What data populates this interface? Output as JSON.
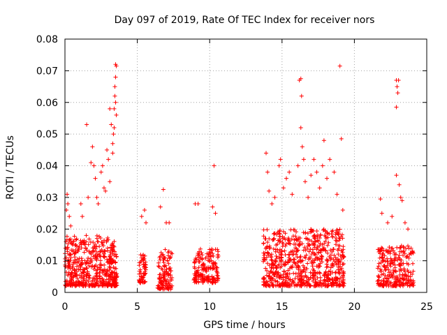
{
  "chart_data": {
    "type": "scatter",
    "title": "Day 097 of 2019, Rate Of TEC Index for receiver nors",
    "xlabel": "GPS time / hours",
    "ylabel": "ROTI / TECUs",
    "xlim": [
      0,
      25
    ],
    "ylim": [
      0,
      0.08
    ],
    "x_ticks": [
      0,
      5,
      10,
      15,
      20,
      25
    ],
    "x_tick_labels": [
      "0",
      "5",
      "10",
      "15",
      "20",
      "25"
    ],
    "y_ticks": [
      0,
      0.01,
      0.02,
      0.03,
      0.04,
      0.05,
      0.06,
      0.07,
      0.08
    ],
    "y_tick_labels": [
      "0",
      "0.01",
      "0.02",
      "0.03",
      "0.04",
      "0.05",
      "0.06",
      "0.07",
      "0.08"
    ],
    "grid": true,
    "marker": "+",
    "series_color": "#ff0000",
    "clusters": [
      {
        "x_range": [
          0.0,
          3.6
        ],
        "y_range": [
          0.002,
          0.018
        ],
        "count": 520
      },
      {
        "x_range": [
          5.1,
          5.6
        ],
        "y_range": [
          0.003,
          0.012
        ],
        "count": 60
      },
      {
        "x_range": [
          6.4,
          7.4
        ],
        "y_range": [
          0.001,
          0.014
        ],
        "count": 120
      },
      {
        "x_range": [
          8.9,
          10.6
        ],
        "y_range": [
          0.003,
          0.014
        ],
        "count": 170
      },
      {
        "x_range": [
          13.7,
          19.3
        ],
        "y_range": [
          0.002,
          0.02
        ],
        "count": 720
      },
      {
        "x_range": [
          21.6,
          24.1
        ],
        "y_range": [
          0.002,
          0.015
        ],
        "count": 260
      }
    ],
    "points": [
      {
        "x": 0.1,
        "y": 0.026
      },
      {
        "x": 0.15,
        "y": 0.031
      },
      {
        "x": 0.2,
        "y": 0.028
      },
      {
        "x": 0.3,
        "y": 0.024
      },
      {
        "x": 0.4,
        "y": 0.021
      },
      {
        "x": 1.1,
        "y": 0.028
      },
      {
        "x": 1.2,
        "y": 0.024
      },
      {
        "x": 1.5,
        "y": 0.053
      },
      {
        "x": 1.6,
        "y": 0.03
      },
      {
        "x": 1.8,
        "y": 0.041
      },
      {
        "x": 1.9,
        "y": 0.046
      },
      {
        "x": 2.0,
        "y": 0.04
      },
      {
        "x": 2.1,
        "y": 0.036
      },
      {
        "x": 2.2,
        "y": 0.03
      },
      {
        "x": 2.3,
        "y": 0.028
      },
      {
        "x": 2.5,
        "y": 0.038
      },
      {
        "x": 2.6,
        "y": 0.04
      },
      {
        "x": 2.7,
        "y": 0.033
      },
      {
        "x": 2.8,
        "y": 0.032
      },
      {
        "x": 2.9,
        "y": 0.045
      },
      {
        "x": 3.0,
        "y": 0.042
      },
      {
        "x": 3.1,
        "y": 0.058
      },
      {
        "x": 3.2,
        "y": 0.053
      },
      {
        "x": 3.3,
        "y": 0.047
      },
      {
        "x": 3.35,
        "y": 0.05
      },
      {
        "x": 3.4,
        "y": 0.052
      },
      {
        "x": 3.4,
        "y": 0.058
      },
      {
        "x": 3.45,
        "y": 0.062
      },
      {
        "x": 3.45,
        "y": 0.065
      },
      {
        "x": 3.5,
        "y": 0.068
      },
      {
        "x": 3.5,
        "y": 0.072
      },
      {
        "x": 3.55,
        "y": 0.0715
      },
      {
        "x": 3.5,
        "y": 0.06
      },
      {
        "x": 3.55,
        "y": 0.056
      },
      {
        "x": 3.3,
        "y": 0.044
      },
      {
        "x": 3.1,
        "y": 0.035
      },
      {
        "x": 5.3,
        "y": 0.024
      },
      {
        "x": 5.5,
        "y": 0.026
      },
      {
        "x": 5.6,
        "y": 0.022
      },
      {
        "x": 6.6,
        "y": 0.027
      },
      {
        "x": 6.8,
        "y": 0.0325
      },
      {
        "x": 7.0,
        "y": 0.022
      },
      {
        "x": 7.2,
        "y": 0.022
      },
      {
        "x": 9.0,
        "y": 0.028
      },
      {
        "x": 9.2,
        "y": 0.028
      },
      {
        "x": 10.2,
        "y": 0.027
      },
      {
        "x": 10.3,
        "y": 0.04
      },
      {
        "x": 10.4,
        "y": 0.025
      },
      {
        "x": 13.9,
        "y": 0.044
      },
      {
        "x": 14.0,
        "y": 0.038
      },
      {
        "x": 14.1,
        "y": 0.032
      },
      {
        "x": 14.3,
        "y": 0.028
      },
      {
        "x": 14.5,
        "y": 0.03
      },
      {
        "x": 14.8,
        "y": 0.04
      },
      {
        "x": 14.9,
        "y": 0.042
      },
      {
        "x": 15.1,
        "y": 0.033
      },
      {
        "x": 15.3,
        "y": 0.036
      },
      {
        "x": 15.5,
        "y": 0.038
      },
      {
        "x": 15.7,
        "y": 0.031
      },
      {
        "x": 16.1,
        "y": 0.04
      },
      {
        "x": 16.2,
        "y": 0.067
      },
      {
        "x": 16.3,
        "y": 0.0675
      },
      {
        "x": 16.35,
        "y": 0.062
      },
      {
        "x": 16.3,
        "y": 0.052
      },
      {
        "x": 16.4,
        "y": 0.046
      },
      {
        "x": 16.5,
        "y": 0.042
      },
      {
        "x": 16.6,
        "y": 0.035
      },
      {
        "x": 16.8,
        "y": 0.03
      },
      {
        "x": 17.0,
        "y": 0.037
      },
      {
        "x": 17.2,
        "y": 0.042
      },
      {
        "x": 17.4,
        "y": 0.038
      },
      {
        "x": 17.6,
        "y": 0.033
      },
      {
        "x": 17.8,
        "y": 0.04
      },
      {
        "x": 17.9,
        "y": 0.048
      },
      {
        "x": 18.1,
        "y": 0.036
      },
      {
        "x": 18.3,
        "y": 0.042
      },
      {
        "x": 18.6,
        "y": 0.038
      },
      {
        "x": 18.8,
        "y": 0.031
      },
      {
        "x": 19.0,
        "y": 0.0715
      },
      {
        "x": 19.1,
        "y": 0.0485
      },
      {
        "x": 19.2,
        "y": 0.026
      },
      {
        "x": 21.8,
        "y": 0.0295
      },
      {
        "x": 21.9,
        "y": 0.025
      },
      {
        "x": 22.3,
        "y": 0.022
      },
      {
        "x": 22.6,
        "y": 0.024
      },
      {
        "x": 22.9,
        "y": 0.067
      },
      {
        "x": 22.95,
        "y": 0.065
      },
      {
        "x": 23.0,
        "y": 0.063
      },
      {
        "x": 23.05,
        "y": 0.067
      },
      {
        "x": 22.9,
        "y": 0.0585
      },
      {
        "x": 22.9,
        "y": 0.037
      },
      {
        "x": 23.1,
        "y": 0.034
      },
      {
        "x": 23.2,
        "y": 0.03
      },
      {
        "x": 23.3,
        "y": 0.029
      },
      {
        "x": 23.5,
        "y": 0.022
      },
      {
        "x": 23.7,
        "y": 0.02
      }
    ]
  }
}
